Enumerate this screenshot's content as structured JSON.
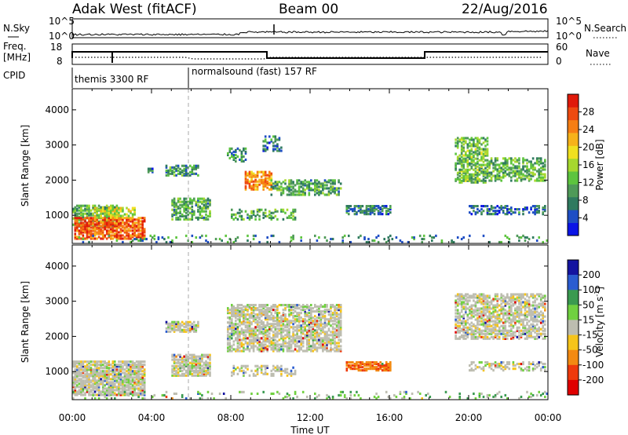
{
  "header": {
    "station": "Adak West (fitACF)",
    "beam": "Beam 00",
    "date": "22/Aug/2016"
  },
  "panels": {
    "nsky": {
      "label": "N.Sky",
      "ticks": [
        "10^5",
        "10^0"
      ],
      "right_label": "N.Search",
      "right_ticks": [
        "10^5",
        "10^0"
      ]
    },
    "freq": {
      "label_line1": "Freq.",
      "label_line2": "[MHz]",
      "ticks": [
        "18",
        "8"
      ],
      "right_label": "Nave",
      "right_ticks": [
        "60",
        "0"
      ]
    },
    "cpid": {
      "label": "CPID",
      "modes": [
        "themis 3300 RF",
        "normalsound (fast) 157 RF"
      ]
    }
  },
  "colorbars": {
    "power": {
      "label": "Power [dB]",
      "ticks": [
        "28",
        "24",
        "20",
        "16",
        "12",
        "8",
        "4"
      ],
      "colors": [
        "#0a14e6",
        "#1e4ec4",
        "#2f7a5f",
        "#4f9a58",
        "#5dc43e",
        "#a6d82e",
        "#f0e020",
        "#f6b21a",
        "#f67e14",
        "#ee4a10",
        "#e01a0a"
      ]
    },
    "velocity": {
      "label_parts": [
        "Velocity [m s",
        "-1",
        "]"
      ],
      "ticks": [
        "200",
        "100",
        "50",
        "15",
        "-15",
        "-50",
        "-100",
        "-200"
      ],
      "colors": [
        "#1414a0",
        "#2a5cd0",
        "#3a9a50",
        "#70d040",
        "#bdbdb0",
        "#f6c41a",
        "#f38a12",
        "#ee3a0c",
        "#e00000"
      ]
    }
  },
  "chart_data": [
    {
      "type": "heatmap",
      "title": "Power",
      "ylabel": "Slant Range [km]",
      "xlabel": "Time UT",
      "x_ticks": [
        "00:00",
        "04:00",
        "08:00",
        "12:00",
        "16:00",
        "20:00",
        "00:00"
      ],
      "y_ticks": [
        "1000",
        "2000",
        "3000",
        "4000"
      ],
      "xlim": [
        0,
        24
      ],
      "ylim": [
        200,
        4600
      ],
      "regions": [
        {
          "t0": 0.0,
          "t1": 2.3,
          "r0": 650,
          "r1": 1250,
          "power": 11,
          "density": 0.65
        },
        {
          "t0": 0.1,
          "t1": 3.7,
          "r0": 300,
          "r1": 900,
          "power": 25,
          "density": 0.75
        },
        {
          "t0": 1.1,
          "t1": 3.2,
          "r0": 900,
          "r1": 1200,
          "power": 16,
          "density": 0.5
        },
        {
          "t0": 3.8,
          "t1": 4.1,
          "r0": 2150,
          "r1": 2300,
          "power": 7,
          "density": 0.6
        },
        {
          "t0": 4.7,
          "t1": 6.3,
          "r0": 2100,
          "r1": 2400,
          "power": 9,
          "density": 0.6
        },
        {
          "t0": 5.0,
          "t1": 6.9,
          "r0": 850,
          "r1": 1450,
          "power": 10,
          "density": 0.55
        },
        {
          "t0": 7.8,
          "t1": 8.7,
          "r0": 2500,
          "r1": 2900,
          "power": 8,
          "density": 0.5
        },
        {
          "t0": 8.7,
          "t1": 10.0,
          "r0": 1700,
          "r1": 2200,
          "power": 22,
          "density": 0.7
        },
        {
          "t0": 10.0,
          "t1": 13.5,
          "r0": 1550,
          "r1": 2000,
          "power": 10,
          "density": 0.55
        },
        {
          "t0": 9.6,
          "t1": 10.5,
          "r0": 2800,
          "r1": 3250,
          "power": 7,
          "density": 0.35
        },
        {
          "t0": 8.0,
          "t1": 11.2,
          "r0": 850,
          "r1": 1150,
          "power": 10,
          "density": 0.35
        },
        {
          "t0": 13.8,
          "t1": 16.0,
          "r0": 1000,
          "r1": 1250,
          "power": 7,
          "density": 0.6
        },
        {
          "t0": 19.3,
          "t1": 21.0,
          "r0": 1900,
          "r1": 3200,
          "power": 12,
          "density": 0.6
        },
        {
          "t0": 21.0,
          "t1": 23.9,
          "r0": 1950,
          "r1": 2600,
          "power": 11,
          "density": 0.55
        },
        {
          "t0": 20.0,
          "t1": 23.9,
          "r0": 1000,
          "r1": 1250,
          "power": 6,
          "density": 0.45
        },
        {
          "t0": 0.0,
          "t1": 24.0,
          "r0": 200,
          "r1": 400,
          "power": 8,
          "density": 0.12
        }
      ]
    },
    {
      "type": "heatmap",
      "title": "Velocity",
      "ylabel": "Slant Range [km]",
      "xlabel": "Time UT",
      "x_ticks": [
        "00:00",
        "04:00",
        "08:00",
        "12:00",
        "16:00",
        "20:00",
        "00:00"
      ],
      "y_ticks": [
        "1000",
        "2000",
        "3000",
        "4000"
      ],
      "xlim": [
        0,
        24
      ],
      "ylim": [
        200,
        4600
      ],
      "regions": [
        {
          "t0": 0.0,
          "t1": 3.7,
          "r0": 300,
          "r1": 1250,
          "velocity": 0,
          "density": 0.8
        },
        {
          "t0": 4.7,
          "t1": 6.3,
          "r0": 2100,
          "r1": 2400,
          "velocity": 0,
          "density": 0.7
        },
        {
          "t0": 5.0,
          "t1": 6.9,
          "r0": 850,
          "r1": 1450,
          "velocity": 0,
          "density": 0.7
        },
        {
          "t0": 7.8,
          "t1": 13.5,
          "r0": 1550,
          "r1": 2900,
          "velocity": 0,
          "density": 0.65
        },
        {
          "t0": 8.0,
          "t1": 11.2,
          "r0": 850,
          "r1": 1150,
          "velocity": 0,
          "density": 0.4
        },
        {
          "t0": 13.8,
          "t1": 16.0,
          "r0": 1000,
          "r1": 1250,
          "velocity": -70,
          "density": 0.7
        },
        {
          "t0": 19.3,
          "t1": 23.9,
          "r0": 1900,
          "r1": 3200,
          "velocity": 0,
          "density": 0.6
        },
        {
          "t0": 20.0,
          "t1": 23.9,
          "r0": 1000,
          "r1": 1250,
          "velocity": 0,
          "density": 0.45
        },
        {
          "t0": 0.0,
          "t1": 24.0,
          "r0": 200,
          "r1": 400,
          "velocity": 20,
          "density": 0.12
        }
      ]
    }
  ]
}
